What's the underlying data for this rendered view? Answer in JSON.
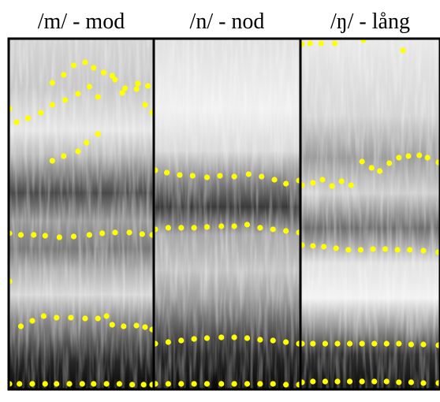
{
  "panels": [
    {
      "title": "/m/ - mod",
      "formants": [
        {
          "points": [
            [
              0,
              138
            ],
            [
              0.05,
              155
            ],
            [
              0.13,
              150
            ],
            [
              0.22,
              143
            ],
            [
              0.3,
              133
            ],
            [
              0.39,
              127
            ],
            [
              0.48,
              119
            ],
            [
              0.56,
              110
            ],
            [
              0.62,
              123
            ],
            [
              0.72,
              96
            ],
            [
              0.79,
              118
            ],
            [
              0.89,
              113
            ],
            [
              0.95,
              133
            ],
            [
              1,
              143
            ]
          ]
        },
        {
          "points": [
            [
              0.3,
              105
            ],
            [
              0.38,
              95
            ],
            [
              0.45,
              83
            ],
            [
              0.53,
              79
            ],
            [
              0.59,
              86
            ],
            [
              0.66,
              92
            ],
            [
              0.74,
              101
            ],
            [
              0.81,
              112
            ],
            [
              0.9,
              106
            ],
            [
              0.97,
              109
            ]
          ]
        },
        {
          "points": [
            [
              0.3,
              204
            ],
            [
              0.38,
              198
            ],
            [
              0.48,
              192
            ],
            [
              0.54,
              181
            ],
            [
              0.62,
              170
            ]
          ]
        },
        {
          "points": [
            [
              0,
              296
            ],
            [
              0.08,
              298
            ],
            [
              0.17,
              298
            ],
            [
              0.25,
              299
            ],
            [
              0.35,
              301
            ],
            [
              0.45,
              300
            ],
            [
              0.56,
              298
            ],
            [
              0.65,
              296
            ],
            [
              0.74,
              295
            ],
            [
              0.84,
              295
            ],
            [
              0.93,
              297
            ],
            [
              1,
              298
            ]
          ]
        },
        {
          "points": [
            [
              0,
              357
            ]
          ]
        },
        {
          "points": [
            [
              0.08,
              414
            ],
            [
              0.16,
              407
            ],
            [
              0.24,
              401
            ],
            [
              0.33,
              403
            ],
            [
              0.43,
              403
            ],
            [
              0.53,
              404
            ],
            [
              0.62,
              404
            ],
            [
              0.68,
              401
            ],
            [
              0.72,
              412
            ],
            [
              0.8,
              414
            ],
            [
              0.89,
              413
            ],
            [
              0.95,
              415
            ],
            [
              1,
              418
            ]
          ]
        },
        {
          "points": [
            [
              0,
              487
            ],
            [
              0.07,
              487
            ],
            [
              0.16,
              487
            ],
            [
              0.25,
              487
            ],
            [
              0.33,
              487
            ],
            [
              0.42,
              487
            ],
            [
              0.51,
              487
            ],
            [
              0.59,
              487
            ],
            [
              0.68,
              487
            ],
            [
              0.77,
              487
            ],
            [
              0.86,
              488
            ],
            [
              0.94,
              488
            ],
            [
              1,
              488
            ]
          ]
        }
      ]
    },
    {
      "title": "/n/ - nod",
      "formants": [
        {
          "points": [
            [
              0,
              216
            ],
            [
              0.08,
              219
            ],
            [
              0.17,
              222
            ],
            [
              0.26,
              223
            ],
            [
              0.36,
              225
            ],
            [
              0.45,
              223
            ],
            [
              0.55,
              224
            ],
            [
              0.65,
              221
            ],
            [
              0.74,
              224
            ],
            [
              0.83,
              228
            ],
            [
              0.91,
              233
            ],
            [
              1,
              229
            ]
          ]
        },
        {
          "points": [
            [
              0,
              291
            ],
            [
              0.09,
              289
            ],
            [
              0.18,
              289
            ],
            [
              0.27,
              289
            ],
            [
              0.36,
              288
            ],
            [
              0.46,
              287
            ],
            [
              0.55,
              287
            ],
            [
              0.64,
              285
            ],
            [
              0.73,
              289
            ],
            [
              0.82,
              291
            ],
            [
              0.91,
              293
            ],
            [
              1,
              295
            ]
          ]
        },
        {
          "points": [
            [
              0,
              436
            ],
            [
              0.09,
              434
            ],
            [
              0.18,
              432
            ],
            [
              0.27,
              430
            ],
            [
              0.36,
              429
            ],
            [
              0.46,
              428
            ],
            [
              0.55,
              428
            ],
            [
              0.64,
              429
            ],
            [
              0.73,
              431
            ],
            [
              0.82,
              432
            ],
            [
              0.91,
              434
            ],
            [
              1,
              436
            ]
          ]
        },
        {
          "points": [
            [
              0,
              487
            ],
            [
              0.09,
              487
            ],
            [
              0.18,
              487
            ],
            [
              0.27,
              487
            ],
            [
              0.36,
              487
            ],
            [
              0.46,
              487
            ],
            [
              0.55,
              487
            ],
            [
              0.64,
              487
            ],
            [
              0.73,
              487
            ],
            [
              0.82,
              487
            ],
            [
              0.91,
              488
            ],
            [
              1,
              488
            ]
          ]
        }
      ]
    },
    {
      "title": "/ŋ/ - lång",
      "formants": [
        {
          "points": [
            [
              0,
              56
            ],
            [
              0.06,
              55
            ],
            [
              0.14,
              55
            ],
            [
              0.24,
              55
            ],
            [
              0.45,
              51
            ],
            [
              0.74,
              64
            ]
          ]
        },
        {
          "points": [
            [
              0,
              235
            ],
            [
              0.08,
              232
            ],
            [
              0.15,
              228
            ],
            [
              0.22,
              236
            ],
            [
              0.29,
              230
            ],
            [
              0.36,
              235
            ],
            [
              0.44,
              205
            ],
            [
              0.51,
              213
            ],
            [
              0.57,
              217
            ],
            [
              0.64,
              207
            ],
            [
              0.71,
              200
            ],
            [
              0.78,
              198
            ],
            [
              0.86,
              197
            ],
            [
              0.92,
              200
            ],
            [
              1,
              206
            ]
          ]
        },
        {
          "points": [
            [
              0,
              311
            ],
            [
              0.08,
              312
            ],
            [
              0.16,
              313
            ],
            [
              0.25,
              315
            ],
            [
              0.34,
              317
            ],
            [
              0.43,
              317
            ],
            [
              0.52,
              316
            ],
            [
              0.61,
              316
            ],
            [
              0.7,
              317
            ],
            [
              0.79,
              317
            ],
            [
              0.89,
              318
            ],
            [
              1,
              320
            ]
          ]
        },
        {
          "points": [
            [
              0,
              436
            ],
            [
              0.08,
              436
            ],
            [
              0.17,
              436
            ],
            [
              0.26,
              436
            ],
            [
              0.35,
              436
            ],
            [
              0.44,
              436
            ],
            [
              0.53,
              436
            ],
            [
              0.62,
              436
            ],
            [
              0.71,
              436
            ],
            [
              0.8,
              437
            ],
            [
              0.89,
              437
            ],
            [
              1,
              438
            ]
          ]
        },
        {
          "points": [
            [
              0,
              485
            ],
            [
              0.08,
              484
            ],
            [
              0.17,
              484
            ],
            [
              0.26,
              484
            ],
            [
              0.35,
              484
            ],
            [
              0.44,
              484
            ],
            [
              0.53,
              484
            ],
            [
              0.62,
              484
            ],
            [
              0.71,
              485
            ],
            [
              0.8,
              485
            ],
            [
              0.89,
              486
            ],
            [
              1,
              486
            ]
          ]
        }
      ]
    }
  ],
  "colors": {
    "formant_dot": "#ffff00",
    "panel_border": "#000000",
    "spectrogram_light": "#ececec",
    "spectrogram_dark": "#101010"
  }
}
